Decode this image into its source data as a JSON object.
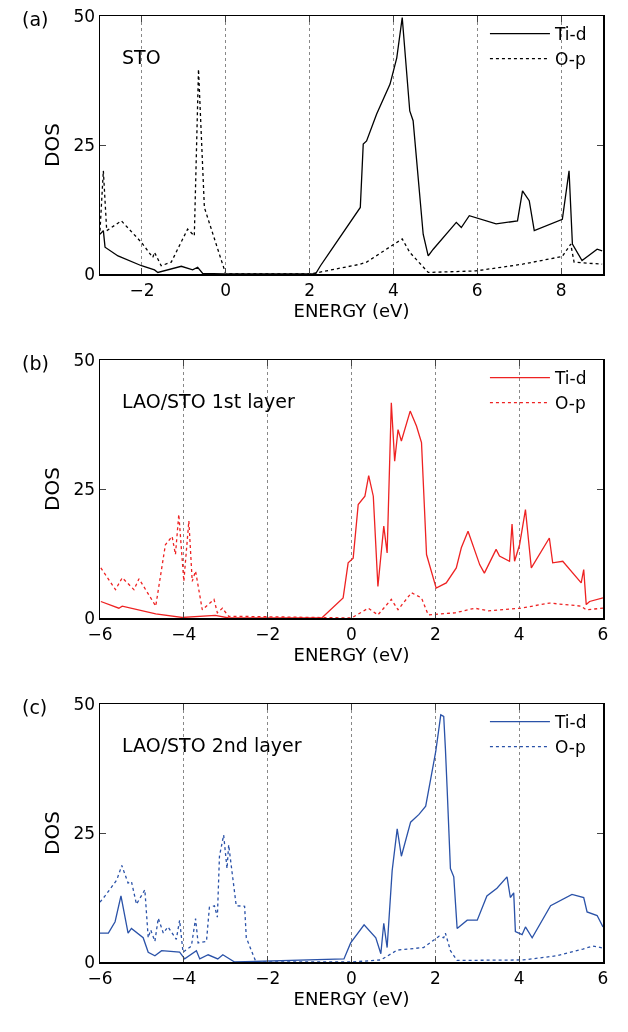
{
  "chart_data": [
    {
      "type": "line",
      "xlabel": "ENERGY (eV)",
      "ylabel": "DOS",
      "annotations": [
        "(a)",
        "STO"
      ],
      "xlim": [
        -3,
        9
      ],
      "xticks": [
        -2,
        0,
        2,
        4,
        6,
        8
      ],
      "ylim": [
        0,
        50
      ],
      "yticks": [
        0,
        25,
        50
      ],
      "grid": "x",
      "legend": "top right",
      "series": [
        {
          "name": "Ti-d",
          "color": "#000000",
          "line_style": "solid",
          "x": [
            -3,
            -2.92,
            -2.88,
            -2.57,
            -2.01,
            -1.7,
            -1.62,
            -1.06,
            -0.79,
            -0.67,
            -0.55,
            -0.04,
            2.14,
            2.26,
            3.21,
            3.28,
            3.36,
            3.6,
            3.92,
            4.08,
            4.21,
            4.39,
            4.47,
            4.71,
            4.83,
            4.95,
            5.5,
            5.62,
            5.81,
            6.45,
            6.96,
            7.08,
            7.24,
            7.36,
            8.03,
            8.19,
            8.27,
            8.5,
            8.86,
            8.98
          ],
          "values": [
            7.7,
            8.4,
            5.2,
            3.5,
            1.6,
            0.8,
            0.3,
            1.5,
            0.8,
            1.3,
            0.1,
            0,
            0,
            1.6,
            12.9,
            25.2,
            25.8,
            31,
            36.8,
            41.9,
            49.7,
            31.6,
            29.7,
            7.7,
            3.5,
            4.8,
            10,
            9,
            11.3,
            9.7,
            10.3,
            16.1,
            14.2,
            8.4,
            10.6,
            20,
            5.8,
            2.6,
            4.8,
            4.5
          ]
        },
        {
          "name": "O-p",
          "color": "#000000",
          "line_style": "dotted",
          "x": [
            -3,
            -2.92,
            -2.84,
            -2.49,
            -2.01,
            -1.74,
            -1.7,
            -1.54,
            -1.3,
            -0.91,
            -0.75,
            -0.65,
            -0.51,
            0,
            2.02,
            3.21,
            3.36,
            4.21,
            4.39,
            4.83,
            5.97,
            7.08,
            8.03,
            8.23,
            8.31,
            8.98
          ],
          "values": [
            8.4,
            20,
            8.4,
            10.3,
            6.1,
            3.2,
            4.2,
            1.6,
            2.3,
            8.7,
            7.4,
            39.7,
            12.9,
            0,
            0,
            1.9,
            2.3,
            6.8,
            4.2,
            0.3,
            0.6,
            1.9,
            3.4,
            5.8,
            2.3,
            1.9
          ]
        }
      ]
    },
    {
      "type": "line",
      "xlabel": "ENERGY (eV)",
      "ylabel": "DOS",
      "annotations": [
        "(b)",
        "LAO/STO 1st layer"
      ],
      "xlim": [
        -6,
        6
      ],
      "xticks": [
        -6,
        -4,
        -2,
        0,
        2,
        4,
        6
      ],
      "ylim": [
        0,
        50
      ],
      "yticks": [
        0,
        25,
        50
      ],
      "grid": "x",
      "legend": "top right",
      "series": [
        {
          "name": "Ti-d",
          "color": "#ee2222",
          "line_style": "solid",
          "x": [
            -5.98,
            -5.55,
            -5.47,
            -4.67,
            -4.04,
            -3.25,
            -2.93,
            -0.71,
            -0.2,
            -0.08,
            0.04,
            0.16,
            0.32,
            0.41,
            0.52,
            0.63,
            0.77,
            0.85,
            0.95,
            1.03,
            1.11,
            1.19,
            1.4,
            1.55,
            1.67,
            1.79,
            2.02,
            2.26,
            2.5,
            2.62,
            2.78,
            3.06,
            3.17,
            3.45,
            3.53,
            3.77,
            3.83,
            3.89,
            4.01,
            4.15,
            4.29,
            4.72,
            4.8,
            5.04,
            5.48,
            5.54,
            5.6,
            5.68,
            6
          ],
          "values": [
            3.2,
            1.9,
            2.3,
            0.8,
            0.1,
            0.5,
            0,
            0,
            3.9,
            10.7,
            11.6,
            22,
            23.6,
            27.6,
            23.6,
            6.1,
            17.8,
            12.6,
            41.7,
            30.4,
            36.5,
            34.3,
            40.1,
            37.2,
            34,
            12.3,
            5.8,
            6.8,
            9.7,
            13.6,
            16.8,
            10.3,
            8.7,
            13.3,
            12,
            11,
            18.2,
            11,
            14.2,
            21,
            9.7,
            15.5,
            10.7,
            11,
            6.8,
            9.4,
            2.6,
            3.2,
            3.9
          ]
        },
        {
          "name": "O-p",
          "color": "#ee2222",
          "line_style": "dotted",
          "x": [
            -5.98,
            -5.63,
            -5.47,
            -5.19,
            -5.07,
            -4.67,
            -4.44,
            -4.28,
            -4.2,
            -4.12,
            -4,
            -3.88,
            -3.8,
            -3.72,
            -3.56,
            -3.28,
            -3.2,
            -3.08,
            -2.93,
            -2.53,
            0,
            0.4,
            0.63,
            0.95,
            1.11,
            1.43,
            1.67,
            1.83,
            2.47,
            2.94,
            3.26,
            4.04,
            4.72,
            5.48,
            5.6,
            6
          ],
          "values": [
            9.7,
            5.5,
            7.8,
            5.5,
            7.6,
            2.3,
            14.2,
            15.8,
            12.3,
            20.1,
            7.1,
            18.8,
            7.1,
            9.1,
            1.6,
            3.6,
            1,
            1.9,
            0.3,
            0.3,
            0,
            1.9,
            0.6,
            3.6,
            1.6,
            4.9,
            3.9,
            0.6,
            1,
            1.9,
            1.4,
            1.9,
            2.9,
            2.3,
            1.6,
            1.9
          ]
        }
      ]
    },
    {
      "type": "line",
      "xlabel": "ENERGY (eV)",
      "ylabel": "DOS",
      "annotations": [
        "(c)",
        "LAO/STO 2nd layer"
      ],
      "xlim": [
        -6,
        6
      ],
      "xticks": [
        -6,
        -4,
        -2,
        0,
        2,
        4,
        6
      ],
      "ylim": [
        0,
        50
      ],
      "yticks": [
        0,
        25,
        50
      ],
      "grid": "x",
      "legend": "top right",
      "series": [
        {
          "name": "Ti-d",
          "color": "#2a52a8",
          "line_style": "solid",
          "x": [
            -6,
            -5.8,
            -5.64,
            -5.5,
            -5.33,
            -5.25,
            -4.97,
            -4.85,
            -4.69,
            -4.53,
            -4.1,
            -3.98,
            -3.7,
            -3.62,
            -3.42,
            -3.19,
            -3.07,
            -2.79,
            -0.18,
            -0.02,
            0.3,
            0.58,
            0.7,
            0.77,
            0.85,
            0.97,
            1.09,
            1.19,
            1.41,
            1.61,
            1.77,
            2.01,
            2.13,
            2.2,
            2.24,
            2.28,
            2.36,
            2.44,
            2.52,
            2.76,
            3,
            3.23,
            3.47,
            3.71,
            3.79,
            3.87,
            3.91,
            4.07,
            4.15,
            4.31,
            4.75,
            5.26,
            5.54,
            5.62,
            5.86,
            6
          ],
          "values": [
            5.6,
            5.6,
            7.8,
            12.8,
            5.6,
            6.5,
            4.7,
            1.9,
            1.2,
            2.2,
            1.9,
            0.6,
            2.2,
            0.6,
            1.4,
            0.6,
            1.4,
            0,
            0.6,
            3.7,
            7.2,
            4.7,
            1.6,
            7.5,
            2.8,
            17.7,
            25.8,
            20.5,
            27.1,
            28.6,
            30.2,
            40.8,
            47.9,
            47.6,
            41.4,
            33.9,
            18.1,
            16.5,
            6.5,
            8.1,
            8.1,
            12.8,
            14.3,
            16.5,
            12.5,
            13.4,
            5.9,
            5.3,
            6.8,
            4.7,
            10.9,
            13.1,
            12.5,
            9.7,
            9,
            6.8
          ]
        },
        {
          "name": "O-p",
          "color": "#2a52a8",
          "line_style": "dotted",
          "x": [
            -6,
            -5.88,
            -5.6,
            -5.48,
            -5.33,
            -5.25,
            -5.13,
            -4.93,
            -4.85,
            -4.79,
            -4.69,
            -4.61,
            -4.49,
            -4.38,
            -4.18,
            -4.1,
            -4.02,
            -3.82,
            -3.72,
            -3.66,
            -3.46,
            -3.39,
            -3.27,
            -3.2,
            -3.15,
            -3.05,
            -2.97,
            -2.93,
            -2.75,
            -2.55,
            -2.51,
            -2.28,
            0,
            0.7,
            1.09,
            1.72,
            2.09,
            2.2,
            2.24,
            2.36,
            2.52,
            4.1,
            4.89,
            5.52,
            5.76,
            6
          ],
          "values": [
            11.6,
            12.8,
            15.9,
            18.7,
            15.3,
            15.6,
            11.2,
            14,
            4.7,
            6.2,
            4,
            8.5,
            5.6,
            6.8,
            4.4,
            8.1,
            1.9,
            3.1,
            8.4,
            3.7,
            4,
            10.6,
            10.9,
            8.7,
            20.5,
            24.6,
            18.1,
            22.7,
            10.9,
            10.8,
            4.7,
            0,
            0,
            0.4,
            2.3,
            2.8,
            5,
            4.7,
            5.6,
            2.2,
            0.3,
            0.4,
            1.2,
            2.5,
            3.1,
            2.7
          ]
        }
      ]
    }
  ]
}
